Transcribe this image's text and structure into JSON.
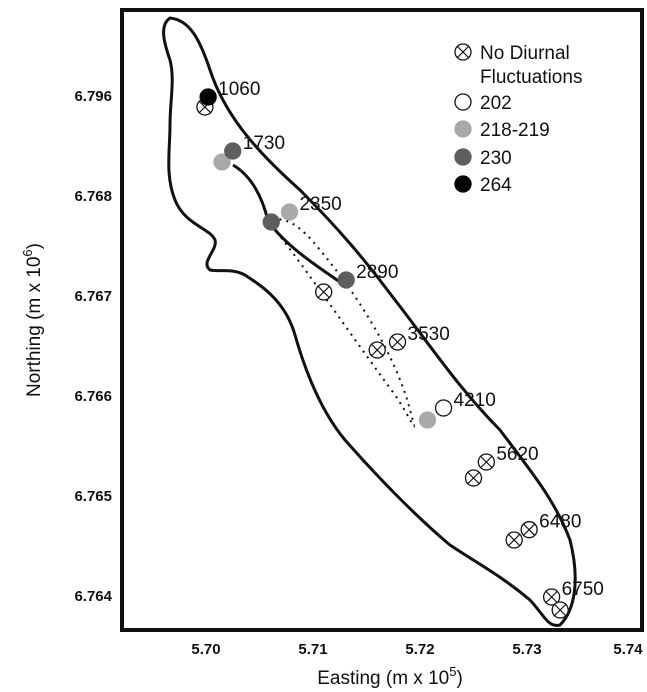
{
  "chart_data": {
    "type": "scatter",
    "title": "",
    "xlabel": "Easting (m x 10",
    "xlabel_exp": "5",
    "xlabel_end": ")",
    "ylabel": "Northing (m x 10",
    "ylabel_exp": "6",
    "ylabel_end": ")",
    "x_ticks": [
      "5.70",
      "5.71",
      "5.72",
      "5.73",
      "5.74"
    ],
    "y_ticks": [
      "6.764",
      "6.765",
      "6.766",
      "6.767",
      "6.768",
      "6.768",
      "6.796"
    ],
    "legend_position": "top-right",
    "legend": [
      {
        "label": "No Diurnal",
        "label2": "Fluctuations",
        "style": "crossed",
        "fill": "#ffffff"
      },
      {
        "label": "202",
        "style": "circle",
        "fill": "#ffffff"
      },
      {
        "label": "218-219",
        "style": "circle",
        "fill": "#a9a9a9"
      },
      {
        "label": "230",
        "style": "circle",
        "fill": "#5e5e5e"
      },
      {
        "label": "264",
        "style": "circle",
        "fill": "#000000"
      }
    ],
    "points": [
      {
        "x": 5.6999,
        "y": 6.7688,
        "cat": "No Diurnal Fluctuations"
      },
      {
        "x": 5.7002,
        "y": 6.7691,
        "cat": "264"
      },
      {
        "x": 5.7015,
        "y": 6.768,
        "cat": "218-219"
      },
      {
        "x": 5.7025,
        "y": 6.7681,
        "cat": "230"
      },
      {
        "x": 5.7061,
        "y": 6.7676,
        "cat": "230"
      },
      {
        "x": 5.7078,
        "y": 6.7677,
        "cat": "218-219"
      },
      {
        "x": 5.7131,
        "y": 6.7672,
        "cat": "230"
      },
      {
        "x": 5.711,
        "y": 6.767,
        "cat": "No Diurnal Fluctuations"
      },
      {
        "x": 5.716,
        "y": 6.7664,
        "cat": "No Diurnal Fluctuations"
      },
      {
        "x": 5.7179,
        "y": 6.7665,
        "cat": "No Diurnal Fluctuations"
      },
      {
        "x": 5.7222,
        "y": 6.7658,
        "cat": "202"
      },
      {
        "x": 5.7207,
        "y": 6.7657,
        "cat": "218-219"
      },
      {
        "x": 5.725,
        "y": 6.7651,
        "cat": "No Diurnal Fluctuations"
      },
      {
        "x": 5.7262,
        "y": 6.7653,
        "cat": "No Diurnal Fluctuations"
      },
      {
        "x": 5.7288,
        "y": 6.7645,
        "cat": "No Diurnal Fluctuations"
      },
      {
        "x": 5.7302,
        "y": 6.7646,
        "cat": "No Diurnal Fluctuations"
      },
      {
        "x": 5.7323,
        "y": 6.764,
        "cat": "No Diurnal Fluctuations"
      },
      {
        "x": 5.7331,
        "y": 6.7638,
        "cat": "No Diurnal Fluctuations"
      }
    ],
    "annotations": [
      {
        "text": "1060",
        "x": 5.7002,
        "y": 6.7691
      },
      {
        "text": "1730",
        "x": 5.7025,
        "y": 6.7681
      },
      {
        "text": "2350",
        "x": 5.7078,
        "y": 6.7677
      },
      {
        "text": "2890",
        "x": 5.7131,
        "y": 6.7672
      },
      {
        "text": "3530",
        "x": 5.7179,
        "y": 6.7665
      },
      {
        "text": "4210",
        "x": 5.7222,
        "y": 6.7658
      },
      {
        "text": "5620",
        "x": 5.7262,
        "y": 6.7653
      },
      {
        "text": "6480",
        "x": 5.7302,
        "y": 6.7646
      },
      {
        "text": "6750",
        "x": 5.7323,
        "y": 6.764
      }
    ],
    "solid_track_points": [
      {
        "x": 5.7025,
        "y": 6.7681
      },
      {
        "x": 5.7061,
        "y": 6.7676
      }
    ],
    "colors": {
      "ink": "#111111",
      "light_gray": "#a9a9a9",
      "dark_gray": "#5e5e5e"
    }
  }
}
